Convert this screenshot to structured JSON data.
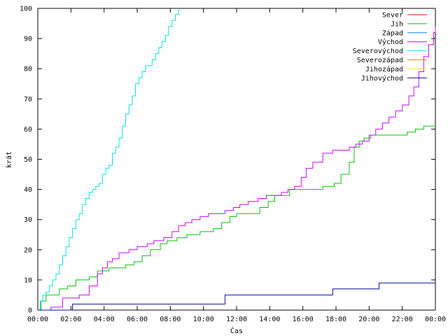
{
  "chart_data": {
    "type": "line",
    "xlabel": "Čas",
    "ylabel": "krát",
    "x_ticks": [
      "00:00",
      "02:00",
      "04:00",
      "06:00",
      "08:00",
      "10:00",
      "12:00",
      "14:00",
      "16:00",
      "18:00",
      "20:00",
      "22:00",
      "00:00"
    ],
    "xlim": [
      0,
      24
    ],
    "ylim": [
      0,
      100
    ],
    "y_ticks": [
      0,
      10,
      20,
      30,
      40,
      50,
      60,
      70,
      80,
      90,
      100
    ],
    "grid": false,
    "legend_position": "top-right",
    "series": [
      {
        "name": "Sever",
        "color": "#ff0000",
        "x": [],
        "y": []
      },
      {
        "name": "Jih",
        "color": "#00c000",
        "x": [
          0,
          0.2,
          0.5,
          1.3,
          1.8,
          2.3,
          3.1,
          3.6,
          4.3,
          5.3,
          5.8,
          6.3,
          6.8,
          7.4,
          7.8,
          8.4,
          9.0,
          9.8,
          10.2,
          10.6,
          11.1,
          11.6,
          12.0,
          12.6,
          13.0,
          13.4,
          13.9,
          14.3,
          15.2,
          16.7,
          17.2,
          17.9,
          18.3,
          18.8,
          19.1,
          19.4,
          19.7,
          20.1,
          20.6,
          21.5,
          22.3,
          22.8,
          23.3,
          24
        ],
        "y": [
          0,
          3,
          5,
          7,
          8,
          10,
          11,
          13,
          14,
          15,
          16,
          18,
          20,
          22,
          23,
          24,
          25,
          26,
          26,
          27,
          29,
          31,
          32,
          32,
          32,
          34,
          36,
          38,
          40,
          40,
          41,
          42,
          45,
          49,
          54,
          56,
          57,
          58,
          58,
          58,
          59,
          60,
          61,
          61
        ]
      },
      {
        "name": "Západ",
        "color": "#0080ff",
        "x": [],
        "y": []
      },
      {
        "name": "Východ",
        "color": "#c000ff",
        "x": [
          0,
          0.8,
          1.5,
          2.5,
          3.1,
          3.6,
          3.9,
          4.2,
          4.5,
          4.9,
          5.5,
          6.0,
          6.6,
          7.0,
          7.6,
          8.1,
          8.5,
          8.9,
          9.3,
          9.8,
          10.3,
          10.8,
          11.3,
          11.8,
          12.2,
          12.7,
          13.3,
          13.8,
          14.3,
          14.7,
          15.1,
          15.5,
          15.9,
          16.2,
          16.6,
          17.2,
          17.8,
          18.3,
          18.8,
          19.2,
          19.6,
          20.0,
          20.4,
          20.8,
          21.2,
          21.6,
          22.0,
          22.4,
          22.7,
          23.0,
          23.3,
          23.6,
          23.9,
          24
        ],
        "y": [
          0,
          1,
          4,
          5,
          8,
          12,
          14,
          16,
          17,
          19,
          20,
          21,
          22,
          23,
          24,
          26,
          28,
          29,
          30,
          31,
          32,
          32,
          33,
          34,
          35,
          36,
          37,
          38,
          38,
          39,
          40,
          41,
          44,
          47,
          49,
          52,
          53,
          53,
          54,
          55,
          56,
          58,
          60,
          62,
          64,
          66,
          68,
          71,
          74,
          79,
          84,
          88,
          92,
          94
        ]
      },
      {
        "name": "Severovýchod",
        "color": "#00e0e0",
        "x": [
          0,
          0.15,
          0.3,
          0.5,
          0.7,
          0.9,
          1.1,
          1.3,
          1.5,
          1.7,
          1.9,
          2.1,
          2.3,
          2.5,
          2.7,
          2.9,
          3.1,
          3.3,
          3.5,
          3.7,
          3.9,
          4.1,
          4.3,
          4.5,
          4.7,
          4.9,
          5.1,
          5.3,
          5.5,
          5.7,
          5.9,
          6.1,
          6.3,
          6.5,
          6.7,
          6.9,
          7.1,
          7.3,
          7.5,
          7.7,
          7.9,
          8.1,
          8.3,
          8.5
        ],
        "y": [
          0,
          3,
          5,
          6,
          8,
          10,
          12,
          15,
          18,
          21,
          24,
          27,
          30,
          32,
          35,
          37,
          39,
          40,
          41,
          42,
          45,
          47,
          48,
          52,
          54,
          57,
          61,
          65,
          68,
          71,
          75,
          77,
          79,
          81,
          81,
          83,
          85,
          87,
          89,
          91,
          94,
          96,
          98,
          100
        ]
      },
      {
        "name": "Severozápad",
        "color": "#ff8000",
        "x": [],
        "y": []
      },
      {
        "name": "Jihozápad",
        "color": "#ffe000",
        "x": [],
        "y": []
      },
      {
        "name": "Jihovýchod",
        "color": "#0000a0",
        "x": [
          0,
          2.1,
          11.3,
          17.8,
          20.6,
          24
        ],
        "y": [
          0,
          2,
          5,
          7,
          9,
          9
        ]
      }
    ]
  }
}
